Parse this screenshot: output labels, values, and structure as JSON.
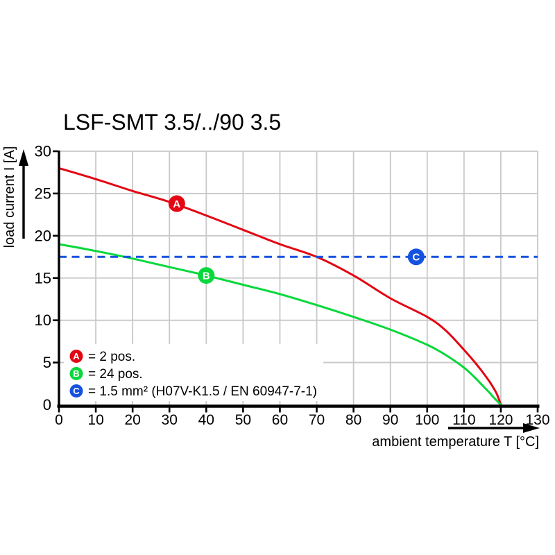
{
  "colors": {
    "red": "#e30613",
    "green": "#08d83b",
    "blue": "#1652e0",
    "grid": "#c8c8c8",
    "axis": "#000000",
    "text": "#000000",
    "background": "#ffffff",
    "marker_letter": "#ffffff",
    "legend_background": "#ffffff"
  },
  "chart_data": {
    "type": "line",
    "title": "LSF-SMT 3.5/../90 3.5",
    "xlabel": "ambient temperature T [°C]",
    "ylabel": "load current I [A]",
    "xlim": [
      0,
      130
    ],
    "ylim": [
      0,
      30
    ],
    "x_ticks": [
      0,
      10,
      20,
      30,
      40,
      50,
      60,
      70,
      80,
      90,
      100,
      110,
      120,
      130
    ],
    "y_ticks": [
      0,
      5,
      10,
      15,
      20,
      25,
      30
    ],
    "grid": true,
    "legend_position": "inside-bottom-left",
    "series": [
      {
        "name": "A",
        "legend_label": "= 2 pos.",
        "color": "#e30613",
        "line_style": "solid",
        "marker_at": {
          "x": 32,
          "y": 23.8
        },
        "points": [
          [
            0,
            28
          ],
          [
            10,
            26.7
          ],
          [
            20,
            25.3
          ],
          [
            30,
            24.0
          ],
          [
            40,
            22.4
          ],
          [
            50,
            20.7
          ],
          [
            60,
            19.0
          ],
          [
            70,
            17.5
          ],
          [
            80,
            15.3
          ],
          [
            90,
            12.6
          ],
          [
            100,
            10.4
          ],
          [
            105,
            8.8
          ],
          [
            110,
            6.5
          ],
          [
            113,
            5.0
          ],
          [
            115,
            3.9
          ],
          [
            117,
            2.7
          ],
          [
            118,
            2.0
          ],
          [
            119,
            1.2
          ],
          [
            120,
            0
          ]
        ]
      },
      {
        "name": "B",
        "legend_label": "= 24 pos.",
        "color": "#08d83b",
        "line_style": "solid",
        "marker_at": {
          "x": 40,
          "y": 15.3
        },
        "points": [
          [
            0,
            19
          ],
          [
            10,
            18.2
          ],
          [
            20,
            17.3
          ],
          [
            30,
            16.3
          ],
          [
            40,
            15.3
          ],
          [
            50,
            14.2
          ],
          [
            60,
            13.1
          ],
          [
            70,
            11.8
          ],
          [
            80,
            10.4
          ],
          [
            90,
            8.9
          ],
          [
            100,
            7.1
          ],
          [
            105,
            5.9
          ],
          [
            110,
            4.4
          ],
          [
            113,
            3.2
          ],
          [
            115,
            2.3
          ],
          [
            117,
            1.4
          ],
          [
            118,
            0.9
          ],
          [
            119,
            0.45
          ],
          [
            120,
            0
          ]
        ]
      },
      {
        "name": "C",
        "legend_label": "= 1.5 mm² (H07V-K1.5 / EN 60947-7-1)",
        "color": "#1652e0",
        "line_style": "dashed",
        "marker_at": {
          "x": 97,
          "y": 17.5
        },
        "points": [
          [
            0,
            17.5
          ],
          [
            130,
            17.5
          ]
        ]
      }
    ]
  }
}
